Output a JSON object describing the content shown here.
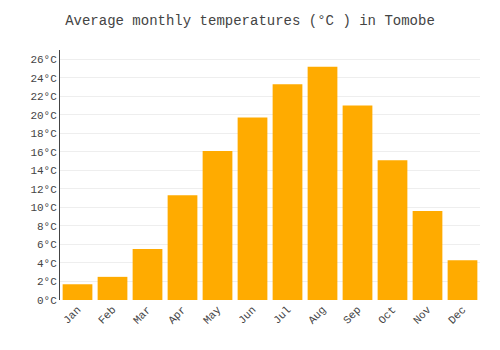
{
  "chart_data": {
    "type": "bar",
    "title": "Average monthly temperatures (°C ) in Tomobe",
    "categories": [
      "Jan",
      "Feb",
      "Mar",
      "Apr",
      "May",
      "Jun",
      "Jul",
      "Aug",
      "Sep",
      "Oct",
      "Nov",
      "Dec"
    ],
    "values": [
      1.7,
      2.5,
      5.5,
      11.3,
      16.1,
      19.7,
      23.3,
      25.2,
      21.0,
      15.1,
      9.6,
      4.3
    ],
    "color": "#FFAB00",
    "ylim": [
      0,
      27
    ],
    "yticks": [
      {
        "value": 0,
        "label": "0°C"
      },
      {
        "value": 2,
        "label": "2°C"
      },
      {
        "value": 4,
        "label": "4°C"
      },
      {
        "value": 6,
        "label": "6°C"
      },
      {
        "value": 8,
        "label": "8°C"
      },
      {
        "value": 10,
        "label": "10°C"
      },
      {
        "value": 12,
        "label": "12°C"
      },
      {
        "value": 14,
        "label": "14°C"
      },
      {
        "value": 16,
        "label": "16°C"
      },
      {
        "value": 18,
        "label": "18°C"
      },
      {
        "value": 20,
        "label": "20°C"
      },
      {
        "value": 22,
        "label": "22°C"
      },
      {
        "value": 24,
        "label": "24°C"
      },
      {
        "value": 26,
        "label": "26°C"
      }
    ],
    "grid": true
  }
}
